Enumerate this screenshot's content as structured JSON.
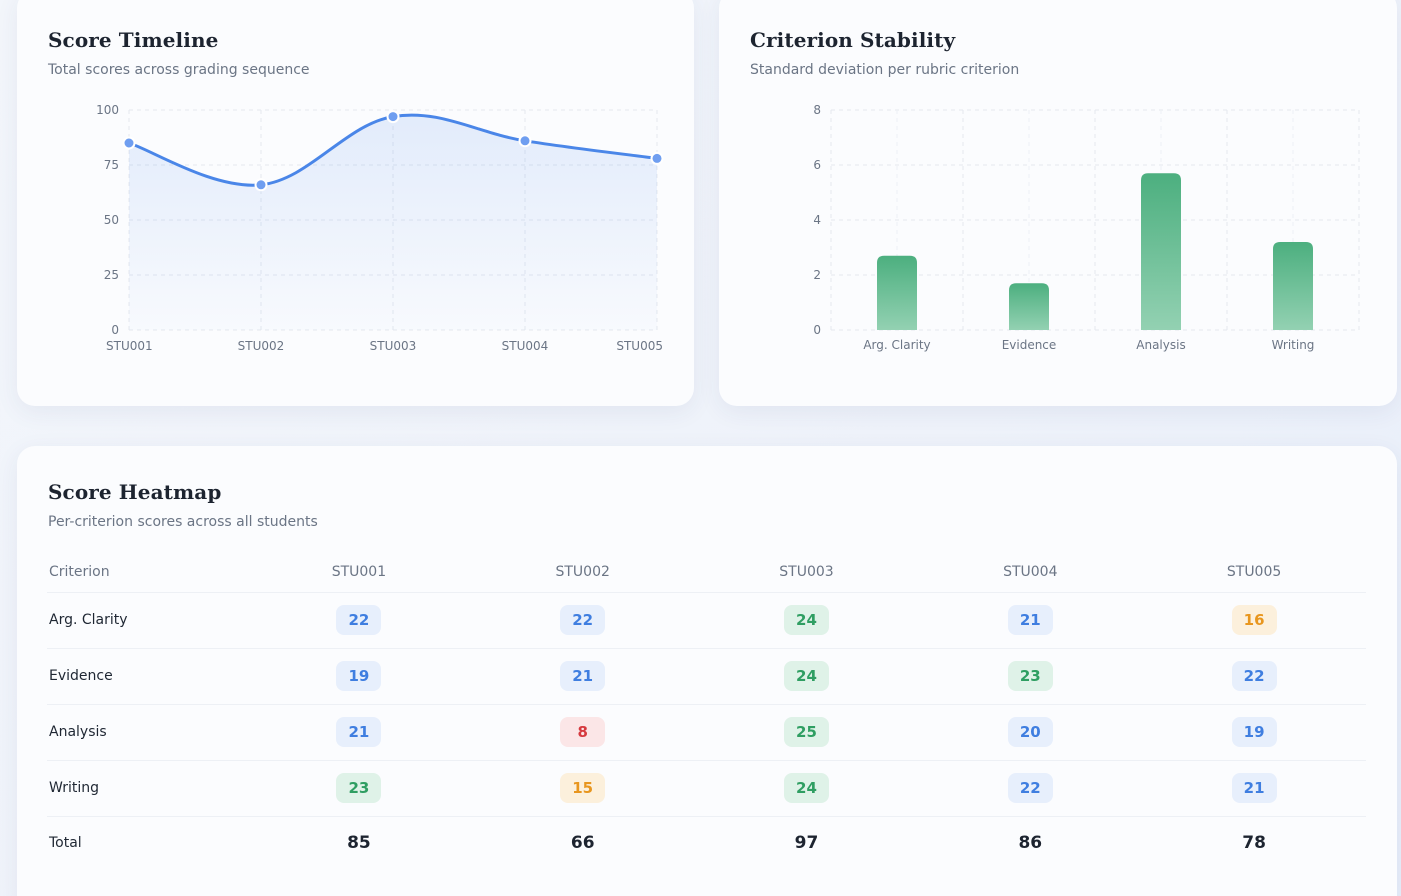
{
  "timeline": {
    "title": "Score Timeline",
    "subtitle": "Total scores across grading sequence"
  },
  "stability": {
    "title": "Criterion Stability",
    "subtitle": "Standard deviation per rubric criterion"
  },
  "heatmap": {
    "title": "Score Heatmap",
    "subtitle": "Per-criterion scores across all students",
    "criterion_header": "Criterion",
    "students": [
      "STU001",
      "STU002",
      "STU003",
      "STU004",
      "STU005"
    ],
    "rows": [
      {
        "criterion": "Arg. Clarity",
        "scores": [
          22,
          22,
          24,
          21,
          16
        ]
      },
      {
        "criterion": "Evidence",
        "scores": [
          19,
          21,
          24,
          23,
          22
        ]
      },
      {
        "criterion": "Analysis",
        "scores": [
          21,
          8,
          25,
          20,
          19
        ]
      },
      {
        "criterion": "Writing",
        "scores": [
          23,
          15,
          24,
          22,
          21
        ]
      }
    ],
    "total_label": "Total",
    "totals": [
      85,
      66,
      97,
      86,
      78
    ],
    "colors": {
      "high": "#2f9e62",
      "mid": "#3f7ee0",
      "low": "#e8961e",
      "very_low": "#d63a3f"
    }
  },
  "chart_data": [
    {
      "type": "line",
      "title": "Score Timeline",
      "subtitle": "Total scores across grading sequence",
      "x": [
        "STU001",
        "STU002",
        "STU003",
        "STU004",
        "STU005"
      ],
      "values": [
        85,
        66,
        97,
        86,
        78
      ],
      "ylim": [
        0,
        100
      ],
      "yticks": [
        0,
        25,
        50,
        75,
        100
      ],
      "grid": true,
      "color": "#4a86e8"
    },
    {
      "type": "bar",
      "title": "Criterion Stability",
      "subtitle": "Standard deviation per rubric criterion",
      "categories": [
        "Arg. Clarity",
        "Evidence",
        "Analysis",
        "Writing"
      ],
      "values": [
        2.7,
        1.7,
        5.7,
        3.2
      ],
      "ylim": [
        0,
        8
      ],
      "yticks": [
        0,
        2,
        4,
        6,
        8
      ],
      "grid": true,
      "color": "#4caf7f"
    }
  ]
}
